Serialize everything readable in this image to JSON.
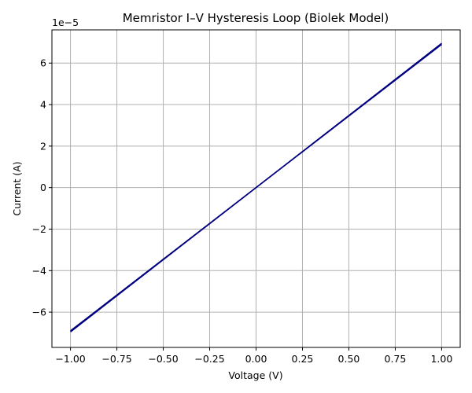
{
  "chart_data": {
    "type": "line",
    "title": "Memristor I–V Hysteresis Loop (Biolek Model)",
    "xlabel": "Voltage (V)",
    "ylabel": "Current (A)",
    "y_offset_label": "1e−5",
    "xlim": [
      -1.1,
      1.1
    ],
    "ylim": [
      -7.7,
      7.6
    ],
    "y_scale_factor": 1e-05,
    "grid": true,
    "x_ticks": [
      -1.0,
      -0.75,
      -0.5,
      -0.25,
      0.0,
      0.25,
      0.5,
      0.75,
      1.0
    ],
    "x_tick_labels": [
      "−1.00",
      "−0.75",
      "−0.50",
      "−0.25",
      "0.00",
      "0.25",
      "0.50",
      "0.75",
      "1.00"
    ],
    "y_ticks": [
      -6,
      -4,
      -2,
      0,
      2,
      4,
      6
    ],
    "y_tick_labels": [
      "−6",
      "−4",
      "−2",
      "0",
      "2",
      "4",
      "6"
    ],
    "series": [
      {
        "color": "#000080",
        "x": [
          -1.0,
          1.0
        ],
        "y": [
          -6.95,
          6.95
        ]
      },
      {
        "color": "#000080",
        "x": [
          -1.0,
          1.0
        ],
        "y": [
          -6.9,
          6.9
        ]
      }
    ]
  }
}
